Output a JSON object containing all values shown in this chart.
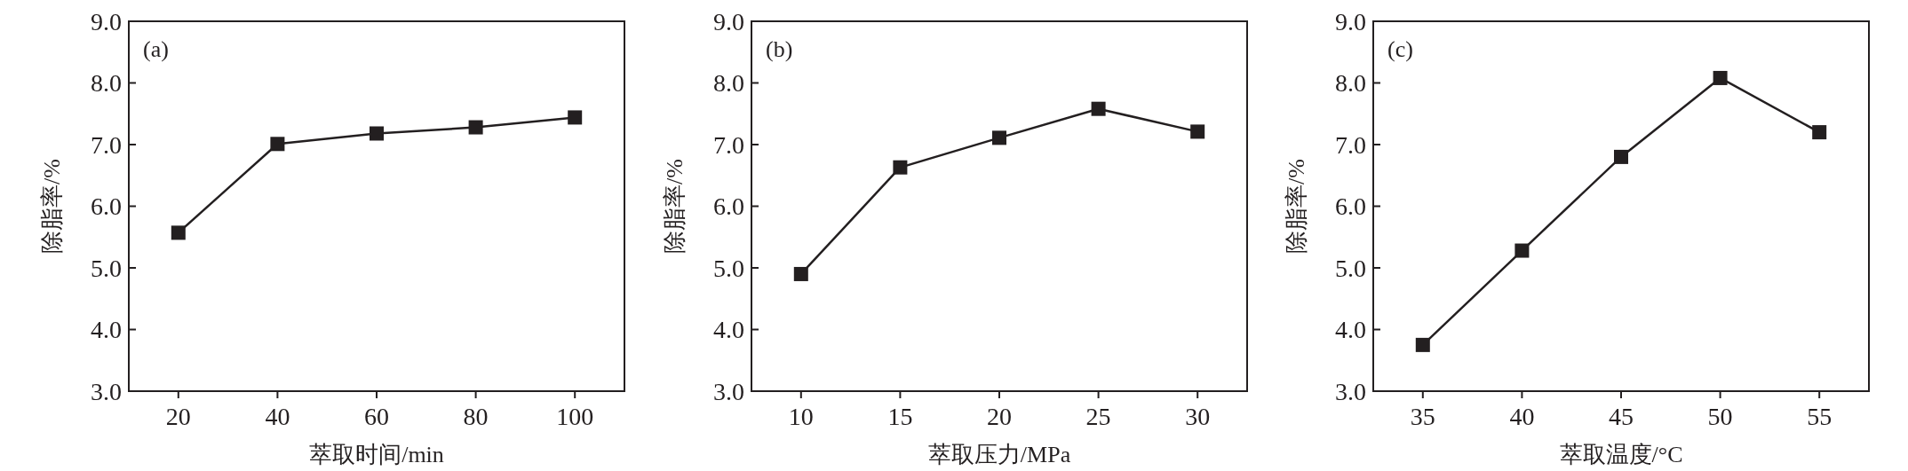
{
  "chart_data": [
    {
      "type": "line",
      "xlabel": "萃取时间/min",
      "ylabel": "除脂率/%",
      "annotations": [
        "(a)"
      ],
      "marker": "square",
      "x": [
        20,
        40,
        60,
        80,
        100
      ],
      "series": [
        {
          "color": "#231f20",
          "values": [
            5.57,
            7.01,
            7.18,
            7.28,
            7.44
          ]
        }
      ],
      "xlim": [
        10,
        110
      ],
      "xticks": [
        20,
        40,
        60,
        80,
        100
      ],
      "ylim": [
        3,
        9
      ],
      "yticks": [
        {
          "value": 3,
          "label": "3.0"
        },
        {
          "value": 4,
          "label": "4.0"
        },
        {
          "value": 5,
          "label": "5.0"
        },
        {
          "value": 6,
          "label": "6.0"
        },
        {
          "value": 7,
          "label": "7.0"
        },
        {
          "value": 8,
          "label": "8.0"
        },
        {
          "value": 9,
          "label": "9.0"
        }
      ]
    },
    {
      "type": "line",
      "xlabel": "萃取压力/MPa",
      "ylabel": "除脂率/%",
      "annotations": [
        "(b)"
      ],
      "marker": "square",
      "x": [
        10,
        15,
        20,
        25,
        30
      ],
      "series": [
        {
          "color": "#231f20",
          "values": [
            4.9,
            6.63,
            7.11,
            7.58,
            7.21
          ]
        }
      ],
      "xlim": [
        7.5,
        32.5
      ],
      "xticks": [
        10,
        15,
        20,
        25,
        30
      ],
      "ylim": [
        3,
        9
      ],
      "yticks": [
        {
          "value": 3,
          "label": "3.0"
        },
        {
          "value": 4,
          "label": "4.0"
        },
        {
          "value": 5,
          "label": "5.0"
        },
        {
          "value": 6,
          "label": "6.0"
        },
        {
          "value": 7,
          "label": "7.0"
        },
        {
          "value": 8,
          "label": "8.0"
        },
        {
          "value": 9,
          "label": "9.0"
        }
      ]
    },
    {
      "type": "line",
      "xlabel": "萃取温度/°C",
      "ylabel": "除脂率/%",
      "annotations": [
        "(c)"
      ],
      "marker": "square",
      "x": [
        35,
        40,
        45,
        50,
        55
      ],
      "series": [
        {
          "color": "#231f20",
          "values": [
            3.75,
            5.28,
            6.8,
            8.08,
            7.2
          ]
        }
      ],
      "xlim": [
        32.5,
        57.5
      ],
      "xticks": [
        35,
        40,
        45,
        50,
        55
      ],
      "ylim": [
        3,
        9
      ],
      "yticks": [
        {
          "value": 3,
          "label": "3.0"
        },
        {
          "value": 4,
          "label": "4.0"
        },
        {
          "value": 5,
          "label": "5.0"
        },
        {
          "value": 6,
          "label": "6.0"
        },
        {
          "value": 7,
          "label": "7.0"
        },
        {
          "value": 8,
          "label": "8.0"
        },
        {
          "value": 9,
          "label": "9.0"
        }
      ]
    }
  ]
}
